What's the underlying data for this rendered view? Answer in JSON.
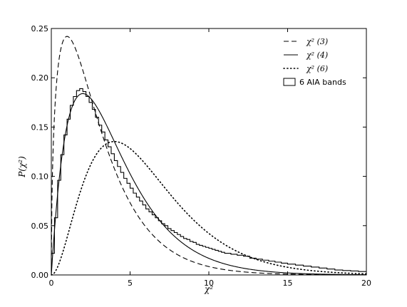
{
  "chart_data": {
    "type": "line",
    "title": "",
    "xlabel": "χ²",
    "ylabel": "P(χ²)",
    "xlim": [
      0,
      20
    ],
    "ylim": [
      0,
      0.25
    ],
    "grid": false,
    "legend_position": "top-right",
    "x_ticks": [
      0,
      5,
      10,
      15,
      20
    ],
    "x_tick_labels": [
      "0",
      "5",
      "10",
      "15",
      "20"
    ],
    "y_ticks": [
      0.0,
      0.05,
      0.1,
      0.15,
      0.2,
      0.25
    ],
    "y_tick_labels": [
      "0.00",
      "0.05",
      "0.10",
      "0.15",
      "0.20",
      "0.25"
    ],
    "series": [
      {
        "name": "χ² (3)",
        "dof": 3,
        "style": "dashed",
        "color": "#000000"
      },
      {
        "name": "χ² (4)",
        "dof": 4,
        "style": "solid",
        "color": "#000000"
      },
      {
        "name": "χ² (6)",
        "dof": 6,
        "style": "dotted",
        "color": "#000000"
      },
      {
        "name": "6 AIA bands",
        "style": "step",
        "color": "#000000",
        "bin_width": 0.2,
        "x": [
          0.0,
          0.2,
          0.4,
          0.6,
          0.8,
          1.0,
          1.2,
          1.4,
          1.6,
          1.8,
          2.0,
          2.2,
          2.4,
          2.6,
          2.8,
          3.0,
          3.2,
          3.4,
          3.6,
          3.8,
          4.0,
          4.2,
          4.4,
          4.6,
          4.8,
          5.0,
          5.2,
          5.4,
          5.6,
          5.8,
          6.0,
          6.2,
          6.4,
          6.6,
          6.8,
          7.0,
          7.2,
          7.4,
          7.6,
          7.8,
          8.0,
          8.2,
          8.4,
          8.6,
          8.8,
          9.0,
          9.2,
          9.4,
          9.6,
          9.8,
          10.0,
          10.2,
          10.4,
          10.6,
          10.8,
          11.0,
          11.4,
          11.8,
          12.2,
          12.6,
          13.0,
          13.4,
          13.8,
          14.2,
          14.6,
          15.0,
          15.5,
          16.0,
          16.5,
          17.0,
          17.5,
          18.0,
          18.5,
          19.0,
          19.5
        ],
        "values": [
          0.022,
          0.058,
          0.096,
          0.122,
          0.142,
          0.158,
          0.172,
          0.181,
          0.187,
          0.189,
          0.186,
          0.181,
          0.175,
          0.168,
          0.16,
          0.152,
          0.145,
          0.137,
          0.13,
          0.123,
          0.116,
          0.11,
          0.104,
          0.098,
          0.093,
          0.088,
          0.083,
          0.079,
          0.075,
          0.071,
          0.067,
          0.064,
          0.061,
          0.058,
          0.055,
          0.052,
          0.05,
          0.047,
          0.045,
          0.043,
          0.041,
          0.039,
          0.037,
          0.036,
          0.034,
          0.033,
          0.031,
          0.03,
          0.029,
          0.028,
          0.027,
          0.026,
          0.025,
          0.024,
          0.023,
          0.022,
          0.021,
          0.02,
          0.019,
          0.017,
          0.016,
          0.015,
          0.014,
          0.013,
          0.012,
          0.011,
          0.01,
          0.009,
          0.008,
          0.007,
          0.006,
          0.005,
          0.0045,
          0.004,
          0.0035
        ]
      }
    ]
  }
}
